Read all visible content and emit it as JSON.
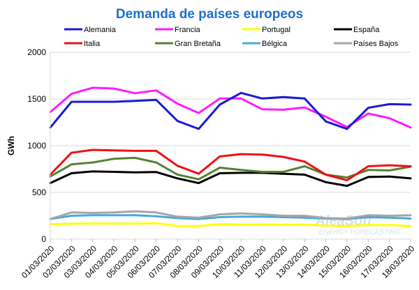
{
  "chart_data": {
    "type": "line",
    "title": "Demanda de países europeos",
    "xlabel": "",
    "ylabel": "GWh",
    "ylim": [
      0,
      2000
    ],
    "yticks": [
      0,
      500,
      1000,
      1500,
      2000
    ],
    "grid": true,
    "legend_position": "top",
    "title_color": "#1f6fc9",
    "watermark": {
      "name": "AleaSoft",
      "tagline": "ENERGY FORECASTING"
    },
    "categories": [
      "01/03/2020",
      "02/03/2020",
      "03/03/2020",
      "04/03/2020",
      "05/03/2020",
      "06/03/2020",
      "07/03/2020",
      "08/03/2020",
      "09/03/2020",
      "10/03/2020",
      "11/03/2020",
      "12/03/2020",
      "13/03/2020",
      "14/03/2020",
      "15/03/2020",
      "16/03/2020",
      "17/03/2020",
      "18/03/2020"
    ],
    "series": [
      {
        "name": "Alemania",
        "color": "#1a1ad6",
        "values": [
          1195,
          1470,
          1470,
          1470,
          1480,
          1490,
          1265,
          1180,
          1440,
          1565,
          1505,
          1520,
          1505,
          1260,
          1180,
          1405,
          1445,
          1440
        ]
      },
      {
        "name": "Francia",
        "color": "#ff1aff",
        "values": [
          1360,
          1555,
          1620,
          1612,
          1562,
          1592,
          1450,
          1350,
          1505,
          1505,
          1390,
          1385,
          1410,
          1310,
          1200,
          1345,
          1295,
          1195
        ]
      },
      {
        "name": "Portugal",
        "color": "#ffff00",
        "values": [
          160,
          165,
          168,
          166,
          166,
          170,
          140,
          140,
          160,
          155,
          155,
          155,
          155,
          145,
          140,
          150,
          150,
          140
        ]
      },
      {
        "name": "España",
        "color": "#000000",
        "values": [
          600,
          705,
          725,
          720,
          715,
          718,
          650,
          600,
          705,
          710,
          710,
          700,
          690,
          610,
          570,
          665,
          670,
          650
        ]
      },
      {
        "name": "Italia",
        "color": "#ee1111",
        "values": [
          690,
          925,
          955,
          950,
          945,
          945,
          785,
          700,
          885,
          910,
          905,
          880,
          830,
          690,
          630,
          780,
          790,
          780
        ]
      },
      {
        "name": "Gran Bretaña",
        "color": "#548235",
        "values": [
          670,
          800,
          820,
          860,
          870,
          820,
          690,
          640,
          765,
          740,
          720,
          720,
          780,
          690,
          660,
          740,
          735,
          775
        ]
      },
      {
        "name": "Bélgica",
        "color": "#4aa8d8",
        "values": [
          215,
          250,
          255,
          255,
          255,
          245,
          225,
          215,
          235,
          240,
          240,
          235,
          230,
          220,
          215,
          235,
          230,
          220
        ]
      },
      {
        "name": "Países Bajos",
        "color": "#a6a6a6",
        "values": [
          215,
          285,
          280,
          285,
          298,
          285,
          240,
          230,
          265,
          275,
          265,
          250,
          250,
          225,
          220,
          255,
          250,
          255
        ]
      }
    ]
  }
}
